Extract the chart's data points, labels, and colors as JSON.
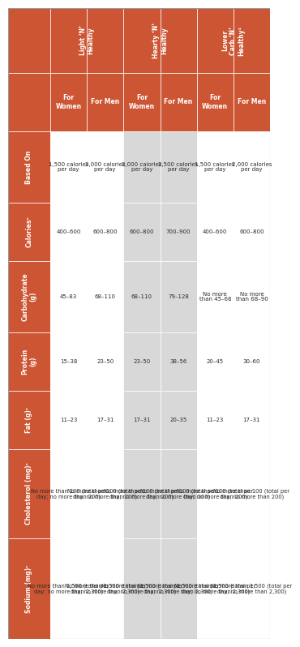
{
  "orange": "#CC5533",
  "white": "#FFFFFF",
  "grey": "#D8D8D8",
  "text_dark": "#2B2B2B",
  "text_white": "#FFFFFF",
  "row_labels": [
    "",
    "Based On",
    "Caloriesᶜ",
    "Carbohydrate\n(g)",
    "Protein\n(g)",
    "Fat (g)ᶜ",
    "Cholesterol (mg)ᶜ",
    "Sodium (mg)ᶜ"
  ],
  "col_groups": [
    {
      "menu": "Light ‘N’\nHealthy",
      "bg": "white"
    },
    {
      "menu": "",
      "bg": "white"
    },
    {
      "menu": "Hearty ‘N’\nHealthy",
      "bg": "grey"
    },
    {
      "menu": "",
      "bg": "grey"
    },
    {
      "menu": "Lower\nCarb ‘N’\nHealthy¹",
      "bg": "white"
    },
    {
      "menu": "",
      "bg": "white"
    }
  ],
  "gender_row": [
    "For\nWomen",
    "For Men",
    "For\nWomen",
    "For Men",
    "For\nWomen",
    "For Men"
  ],
  "based_on_row": [
    "1,500 calories\nper day",
    "2,000 calories\nper day",
    "2,000 calories\nper day",
    "2,500 calories\nper day",
    "1,500 calories\nper day",
    "2,000 calories\nper day"
  ],
  "calories_row": [
    "400–600",
    "600–800",
    "600–800",
    "700–900",
    "400–600",
    "600–800"
  ],
  "carb_row": [
    "45–83",
    "68–110",
    "68–110",
    "79–128",
    "No more\nthan 45–68",
    "No more\nthan 68–90"
  ],
  "protein_row": [
    "15–38",
    "23–50",
    "23–50",
    "38–56",
    "20–45",
    "30–60"
  ],
  "fat_row": [
    "11–23",
    "17–31",
    "17–31",
    "20–35",
    "11–23",
    "17–31"
  ],
  "cholesterol_row": [
    "No more than 100 (total per\nday; no more than 200)",
    "No more than 100 (total per\nday; no more than 200)",
    "No more than 100 (total per\nday; no more than 200)",
    "No more than 100 (total per\nday; no more than 200)",
    "No more than 100 (total per\nday; no more than 200)",
    "No more than 100 (total per\nday; no more than 200)"
  ],
  "sodium_row": [
    "No more than 1,500 (total per\nday; no more than 2,300)",
    "No more than 1,500 (total per\nday; no more than 2,300)",
    "No more than 1,500 (total per\nday; no more than 2,300)",
    "No more than 1,500 (total per\nday; no more than 2,300)",
    "No more than 1,500 (total per\nday; no more than 2,300)",
    "No more than 1,500 (total per\nday; no more than 2,300)"
  ]
}
